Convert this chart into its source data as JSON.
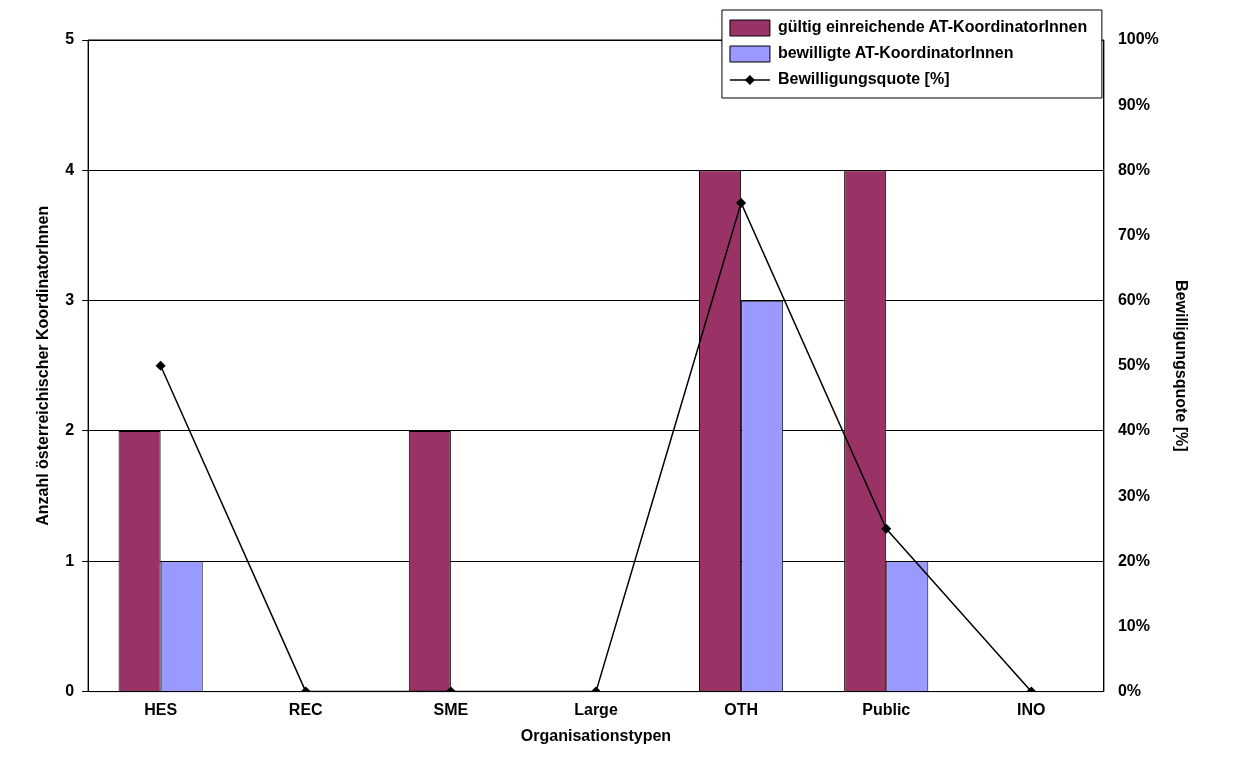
{
  "chart_data": {
    "type": "bar",
    "xlabel": "Organisationstypen",
    "ylabel": "Anzahl österreichischer KoordinatorInnen",
    "y2label": "Bewilligungsquote [%]",
    "categories": [
      "HES",
      "REC",
      "SME",
      "Large",
      "OTH",
      "Public",
      "INO"
    ],
    "series": [
      {
        "name": "gültig einreichende AT-KoordinatorInnen",
        "color": "#993366",
        "values": [
          2,
          0,
          2,
          0,
          4,
          4,
          0
        ]
      },
      {
        "name": "bewilligte AT-KoordinatorInnen",
        "color": "#9999ff",
        "values": [
          1,
          0,
          0,
          0,
          3,
          1,
          0
        ]
      },
      {
        "name": "Bewilligungsquote [%]",
        "type": "line",
        "axis": "y2",
        "color": "#000000",
        "marker": "diamond",
        "values": [
          50,
          0,
          0,
          0,
          75,
          25,
          0
        ]
      }
    ],
    "ylim": [
      0,
      5
    ],
    "yticks": [
      0,
      1,
      2,
      3,
      4,
      5
    ],
    "y2lim": [
      0,
      100
    ],
    "y2ticks": [
      {
        "value": 0,
        "label": "0%"
      },
      {
        "value": 10,
        "label": "10%"
      },
      {
        "value": 20,
        "label": "20%"
      },
      {
        "value": 30,
        "label": "30%"
      },
      {
        "value": 40,
        "label": "40%"
      },
      {
        "value": 50,
        "label": "50%"
      },
      {
        "value": 60,
        "label": "60%"
      },
      {
        "value": 70,
        "label": "70%"
      },
      {
        "value": 80,
        "label": "80%"
      },
      {
        "value": 90,
        "label": "90%"
      },
      {
        "value": 100,
        "label": "100%"
      }
    ],
    "grid": "y",
    "legend": "top right"
  }
}
